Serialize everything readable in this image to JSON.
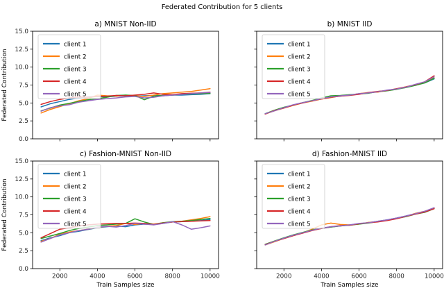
{
  "suptitle": "Federated Contribution for 5 clients",
  "axes": {
    "ylabel": "Federated Contribution",
    "xlabel": "Train Samples size",
    "yticks": [
      0.0,
      2.5,
      5.0,
      7.5,
      10.0,
      12.5,
      15.0
    ],
    "xticks": [
      2000,
      4000,
      6000,
      8000,
      10000
    ],
    "ylim": [
      0,
      15
    ],
    "xlim": [
      550,
      10450
    ],
    "legend_position": "upper-left",
    "grid": false
  },
  "legend_labels": [
    "client 1",
    "client 2",
    "client 3",
    "client 4",
    "client 5"
  ],
  "colors": {
    "client1": "#1f77b4",
    "client2": "#ff7f0e",
    "client3": "#2ca02c",
    "client4": "#d62728",
    "client5": "#9467bd"
  },
  "chart_data": [
    {
      "type": "line",
      "id": "a",
      "title": "a) MNIST Non-IID",
      "show_y_labels": true,
      "show_x_labels": false,
      "x": [
        1000,
        1500,
        2000,
        2500,
        3000,
        3500,
        4000,
        4500,
        5000,
        5500,
        6000,
        6500,
        7000,
        7500,
        8000,
        8500,
        9000,
        9500,
        10000
      ],
      "series": [
        {
          "name": "client 1",
          "color": "#1f77b4",
          "values": [
            4.45,
            4.9,
            5.2,
            5.5,
            5.7,
            5.85,
            5.9,
            5.85,
            5.95,
            6.0,
            5.95,
            6.0,
            6.05,
            6.0,
            6.1,
            6.1,
            6.15,
            6.2,
            6.3
          ]
        },
        {
          "name": "client 2",
          "color": "#ff7f0e",
          "values": [
            3.6,
            4.1,
            4.5,
            4.9,
            5.3,
            5.6,
            6.1,
            6.0,
            5.95,
            6.1,
            6.0,
            5.9,
            6.1,
            6.3,
            6.4,
            6.5,
            6.6,
            6.8,
            7.0
          ]
        },
        {
          "name": "client 3",
          "color": "#2ca02c",
          "values": [
            3.9,
            4.3,
            4.7,
            4.95,
            5.2,
            5.45,
            5.6,
            5.8,
            6.05,
            6.1,
            6.05,
            5.45,
            5.95,
            6.05,
            6.1,
            6.2,
            6.25,
            6.3,
            6.35
          ]
        },
        {
          "name": "client 4",
          "color": "#d62728",
          "values": [
            4.8,
            5.2,
            5.5,
            5.7,
            5.85,
            5.8,
            5.9,
            5.95,
            6.05,
            6.0,
            6.1,
            6.2,
            6.4,
            6.2,
            6.15,
            6.3,
            6.35,
            6.4,
            6.5
          ]
        },
        {
          "name": "client 5",
          "color": "#9467bd",
          "values": [
            3.85,
            4.35,
            4.6,
            4.75,
            5.1,
            5.3,
            5.5,
            5.6,
            5.7,
            5.85,
            5.9,
            5.7,
            5.8,
            6.0,
            6.1,
            6.2,
            6.3,
            6.4,
            6.45
          ]
        }
      ]
    },
    {
      "type": "line",
      "id": "b",
      "title": "b) MNIST IID",
      "show_y_labels": false,
      "show_x_labels": false,
      "x": [
        1000,
        1500,
        2000,
        2500,
        3000,
        3500,
        4000,
        4500,
        5000,
        5500,
        6000,
        6500,
        7000,
        7500,
        8000,
        8500,
        9000,
        9500,
        10000
      ],
      "series": [
        {
          "name": "client 1",
          "color": "#1f77b4",
          "values": [
            3.5,
            3.95,
            4.35,
            4.7,
            5.0,
            5.3,
            5.6,
            5.8,
            5.95,
            6.1,
            6.25,
            6.4,
            6.55,
            6.7,
            6.95,
            7.2,
            7.5,
            7.8,
            8.35
          ]
        },
        {
          "name": "client 2",
          "color": "#ff7f0e",
          "values": [
            3.45,
            3.9,
            4.3,
            4.65,
            5.0,
            5.25,
            5.55,
            5.75,
            6.0,
            6.1,
            6.3,
            6.45,
            6.5,
            6.75,
            6.9,
            7.25,
            7.55,
            7.9,
            8.5
          ]
        },
        {
          "name": "client 3",
          "color": "#2ca02c",
          "values": [
            3.5,
            4.0,
            4.4,
            4.7,
            5.05,
            5.35,
            5.7,
            6.0,
            6.05,
            6.15,
            6.25,
            6.35,
            6.6,
            6.7,
            6.9,
            7.15,
            7.45,
            7.8,
            8.45
          ]
        },
        {
          "name": "client 4",
          "color": "#d62728",
          "values": [
            3.45,
            3.95,
            4.3,
            4.7,
            5.0,
            5.3,
            5.55,
            5.8,
            5.95,
            6.05,
            6.2,
            6.45,
            6.6,
            6.75,
            7.0,
            7.25,
            7.55,
            7.95,
            8.8
          ]
        },
        {
          "name": "client 5",
          "color": "#9467bd",
          "values": [
            3.5,
            3.9,
            4.35,
            4.75,
            5.05,
            5.3,
            5.6,
            5.85,
            6.0,
            6.1,
            6.3,
            6.4,
            6.55,
            6.8,
            6.95,
            7.2,
            7.6,
            7.95,
            8.65
          ]
        }
      ]
    },
    {
      "type": "line",
      "id": "c",
      "title": "c) Fashion-MNIST Non-IID",
      "show_y_labels": true,
      "show_x_labels": true,
      "x": [
        1000,
        1500,
        2000,
        2500,
        3000,
        3500,
        4000,
        4500,
        5000,
        5500,
        6000,
        6500,
        7000,
        7500,
        8000,
        8500,
        9000,
        9500,
        10000
      ],
      "series": [
        {
          "name": "client 1",
          "color": "#1f77b4",
          "values": [
            3.9,
            4.3,
            4.6,
            5.0,
            5.2,
            5.45,
            5.7,
            5.85,
            5.95,
            5.85,
            6.1,
            6.2,
            6.15,
            6.3,
            6.5,
            6.55,
            6.6,
            6.7,
            6.85
          ]
        },
        {
          "name": "client 2",
          "color": "#ff7f0e",
          "values": [
            3.8,
            4.2,
            4.8,
            5.1,
            5.3,
            5.5,
            5.75,
            5.9,
            6.0,
            6.3,
            6.15,
            6.3,
            6.2,
            6.4,
            6.5,
            6.6,
            6.8,
            7.0,
            7.25
          ]
        },
        {
          "name": "client 3",
          "color": "#2ca02c",
          "values": [
            4.2,
            4.55,
            4.9,
            5.3,
            5.6,
            5.8,
            6.0,
            6.1,
            6.2,
            6.3,
            6.95,
            6.5,
            6.15,
            6.4,
            6.55,
            6.6,
            6.7,
            6.85,
            7.0
          ]
        },
        {
          "name": "client 4",
          "color": "#d62728",
          "values": [
            4.3,
            4.9,
            5.5,
            5.7,
            5.95,
            6.1,
            6.2,
            6.25,
            6.3,
            6.3,
            6.35,
            6.3,
            6.15,
            6.35,
            6.5,
            6.55,
            6.6,
            6.65,
            6.7
          ]
        },
        {
          "name": "client 5",
          "color": "#9467bd",
          "values": [
            3.7,
            4.2,
            4.7,
            5.0,
            5.3,
            5.5,
            5.8,
            5.9,
            5.8,
            6.0,
            6.3,
            6.2,
            6.1,
            6.3,
            6.55,
            6.1,
            5.5,
            5.7,
            5.95
          ]
        }
      ]
    },
    {
      "type": "line",
      "id": "d",
      "title": "d) Fashion-MNIST IID",
      "show_y_labels": false,
      "show_x_labels": true,
      "x": [
        1000,
        1500,
        2000,
        2500,
        3000,
        3500,
        4000,
        4500,
        5000,
        5500,
        6000,
        6500,
        7000,
        7500,
        8000,
        8500,
        9000,
        9500,
        10000
      ],
      "series": [
        {
          "name": "client 1",
          "color": "#1f77b4",
          "values": [
            3.35,
            3.8,
            4.25,
            4.65,
            5.0,
            5.35,
            5.6,
            5.8,
            5.95,
            6.1,
            6.25,
            6.4,
            6.6,
            6.8,
            7.05,
            7.35,
            7.65,
            7.95,
            8.45
          ]
        },
        {
          "name": "client 2",
          "color": "#ff7f0e",
          "values": [
            3.3,
            3.75,
            4.2,
            4.6,
            5.0,
            5.5,
            6.1,
            6.35,
            6.15,
            6.1,
            6.2,
            6.45,
            6.55,
            6.75,
            7.0,
            7.3,
            7.7,
            8.0,
            8.4
          ]
        },
        {
          "name": "client 3",
          "color": "#2ca02c",
          "values": [
            3.4,
            3.85,
            4.3,
            4.7,
            5.05,
            5.4,
            5.65,
            5.8,
            5.95,
            6.05,
            6.2,
            6.35,
            6.55,
            6.75,
            7.0,
            7.25,
            7.6,
            7.85,
            8.35
          ]
        },
        {
          "name": "client 4",
          "color": "#d62728",
          "values": [
            3.35,
            3.8,
            4.2,
            4.6,
            4.95,
            5.3,
            5.6,
            5.85,
            6.0,
            6.05,
            6.25,
            6.4,
            6.5,
            6.7,
            6.95,
            7.3,
            7.6,
            7.9,
            8.35
          ]
        },
        {
          "name": "client 5",
          "color": "#9467bd",
          "values": [
            3.3,
            3.8,
            4.25,
            4.65,
            5.0,
            5.35,
            5.65,
            5.85,
            5.95,
            6.1,
            6.3,
            6.4,
            6.6,
            6.8,
            7.05,
            7.35,
            7.65,
            8.0,
            8.5
          ]
        }
      ]
    }
  ]
}
